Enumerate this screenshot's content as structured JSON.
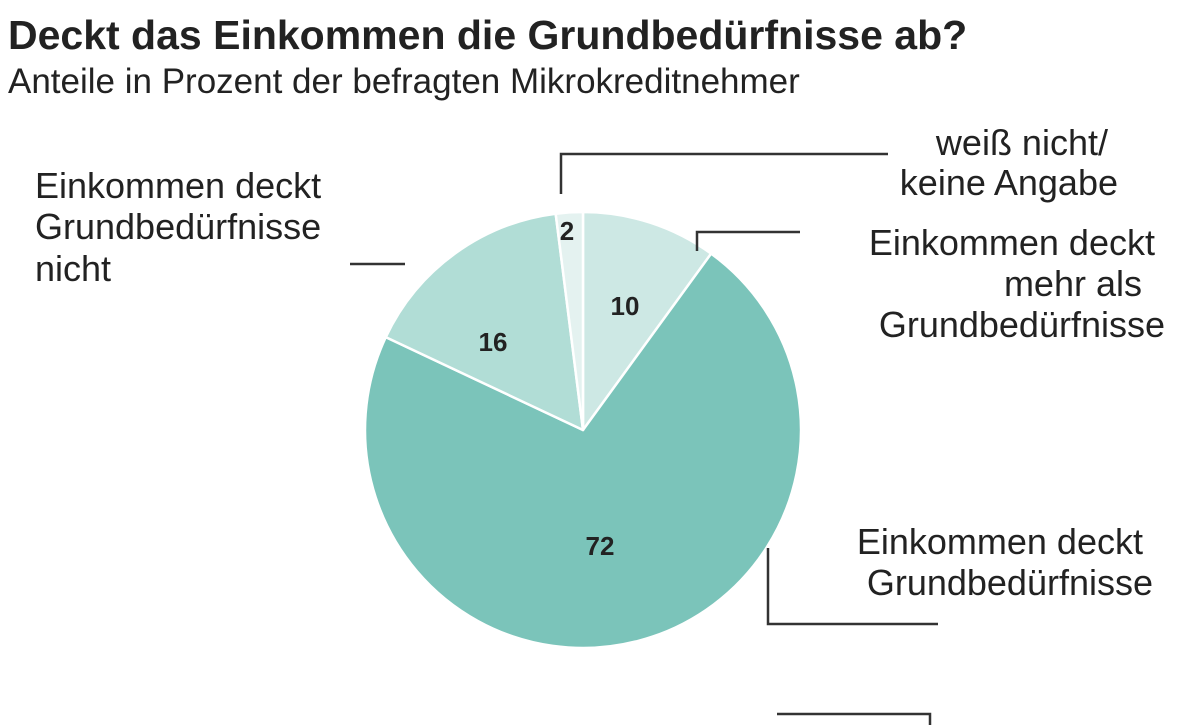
{
  "chart_data": {
    "type": "pie",
    "title": "Deckt das Einkommen die Grundbedürfnisse ab?",
    "subtitle": "Anteile in Prozent der befragten Mikrokreditnehmer",
    "start_angle": "top, clockwise",
    "slices": [
      {
        "label_lines": [
          "Einkommen deckt",
          "mehr als",
          "Grundbedürfnisse"
        ],
        "value": 10,
        "value_label": "10",
        "color": "#cde8e4"
      },
      {
        "label_lines": [
          "Einkommen deckt",
          "Grundbedürfnisse"
        ],
        "value": 72,
        "value_label": "72",
        "color": "#7bc4ba"
      },
      {
        "label_lines": [
          "Einkommen deckt",
          "Grundbedürfnisse",
          "nicht"
        ],
        "value": 16,
        "value_label": "16",
        "color": "#b1ddd6"
      },
      {
        "label_lines": [
          "weiß nicht/",
          "keine Angabe"
        ],
        "value": 2,
        "value_label": "2",
        "color": "#e4f2f0"
      }
    ]
  }
}
